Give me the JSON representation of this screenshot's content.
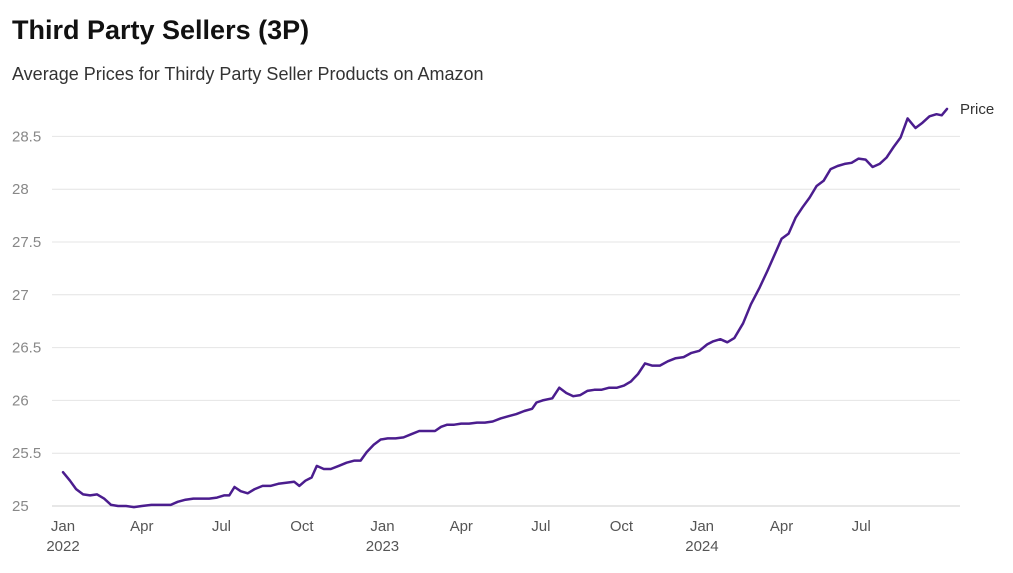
{
  "chart_data": {
    "type": "line",
    "title": "Third Party Sellers (3P)",
    "subtitle": "Average Prices for Thirdy Party Seller Products on Amazon",
    "xlabel": "",
    "ylabel": "",
    "ylim": [
      25,
      28.75
    ],
    "grid": true,
    "line_color": "#4b1d8e",
    "yticks": [
      25,
      25.5,
      26,
      26.5,
      27,
      27.5,
      28,
      28.5
    ],
    "ytick_labels": [
      "25",
      "25.5",
      "26",
      "26.5",
      "27",
      "27.5",
      "28",
      "28.5"
    ],
    "xticks": [
      {
        "date": "2022-01-01",
        "label": "Jan",
        "year": "2022"
      },
      {
        "date": "2022-04-01",
        "label": "Apr",
        "year": ""
      },
      {
        "date": "2022-07-01",
        "label": "Jul",
        "year": ""
      },
      {
        "date": "2022-10-01",
        "label": "Oct",
        "year": ""
      },
      {
        "date": "2023-01-01",
        "label": "Jan",
        "year": "2023"
      },
      {
        "date": "2023-04-01",
        "label": "Apr",
        "year": ""
      },
      {
        "date": "2023-07-01",
        "label": "Jul",
        "year": ""
      },
      {
        "date": "2023-10-01",
        "label": "Oct",
        "year": ""
      },
      {
        "date": "2024-01-01",
        "label": "Jan",
        "year": "2024"
      },
      {
        "date": "2024-04-01",
        "label": "Apr",
        "year": ""
      },
      {
        "date": "2024-07-01",
        "label": "Jul",
        "year": ""
      }
    ],
    "series": [
      {
        "name": "Price",
        "points": [
          [
            "2022-01-01",
            25.32
          ],
          [
            "2022-01-09",
            25.24
          ],
          [
            "2022-01-16",
            25.16
          ],
          [
            "2022-01-24",
            25.11
          ],
          [
            "2022-02-01",
            25.1
          ],
          [
            "2022-02-09",
            25.11
          ],
          [
            "2022-02-17",
            25.07
          ],
          [
            "2022-02-25",
            25.01
          ],
          [
            "2022-03-05",
            25.0
          ],
          [
            "2022-03-14",
            25.0
          ],
          [
            "2022-03-23",
            24.99
          ],
          [
            "2022-04-01",
            25.0
          ],
          [
            "2022-04-12",
            25.01
          ],
          [
            "2022-04-23",
            25.01
          ],
          [
            "2022-05-04",
            25.01
          ],
          [
            "2022-05-12",
            25.04
          ],
          [
            "2022-05-21",
            25.06
          ],
          [
            "2022-05-30",
            25.07
          ],
          [
            "2022-06-08",
            25.07
          ],
          [
            "2022-06-17",
            25.07
          ],
          [
            "2022-06-26",
            25.08
          ],
          [
            "2022-07-04",
            25.1
          ],
          [
            "2022-07-10",
            25.1
          ],
          [
            "2022-07-16",
            25.18
          ],
          [
            "2022-07-23",
            25.14
          ],
          [
            "2022-07-31",
            25.12
          ],
          [
            "2022-08-08",
            25.16
          ],
          [
            "2022-08-17",
            25.19
          ],
          [
            "2022-08-26",
            25.19
          ],
          [
            "2022-09-04",
            25.21
          ],
          [
            "2022-09-13",
            25.22
          ],
          [
            "2022-09-22",
            25.23
          ],
          [
            "2022-09-28",
            25.19
          ],
          [
            "2022-10-05",
            25.24
          ],
          [
            "2022-10-12",
            25.27
          ],
          [
            "2022-10-18",
            25.38
          ],
          [
            "2022-10-26",
            25.35
          ],
          [
            "2022-11-03",
            25.35
          ],
          [
            "2022-11-12",
            25.38
          ],
          [
            "2022-11-21",
            25.41
          ],
          [
            "2022-11-30",
            25.43
          ],
          [
            "2022-12-07",
            25.43
          ],
          [
            "2022-12-14",
            25.51
          ],
          [
            "2022-12-22",
            25.58
          ],
          [
            "2022-12-30",
            25.63
          ],
          [
            "2023-01-07",
            25.64
          ],
          [
            "2023-01-16",
            25.64
          ],
          [
            "2023-01-25",
            25.65
          ],
          [
            "2023-02-03",
            25.68
          ],
          [
            "2023-02-12",
            25.71
          ],
          [
            "2023-02-21",
            25.71
          ],
          [
            "2023-03-02",
            25.71
          ],
          [
            "2023-03-09",
            25.75
          ],
          [
            "2023-03-16",
            25.77
          ],
          [
            "2023-03-24",
            25.77
          ],
          [
            "2023-04-01",
            25.78
          ],
          [
            "2023-04-10",
            25.78
          ],
          [
            "2023-04-19",
            25.79
          ],
          [
            "2023-04-28",
            25.79
          ],
          [
            "2023-05-07",
            25.8
          ],
          [
            "2023-05-16",
            25.83
          ],
          [
            "2023-05-25",
            25.85
          ],
          [
            "2023-06-03",
            25.87
          ],
          [
            "2023-06-12",
            25.9
          ],
          [
            "2023-06-21",
            25.92
          ],
          [
            "2023-06-26",
            25.98
          ],
          [
            "2023-07-03",
            26.0
          ],
          [
            "2023-07-14",
            26.02
          ],
          [
            "2023-07-22",
            26.12
          ],
          [
            "2023-07-30",
            26.07
          ],
          [
            "2023-08-07",
            26.04
          ],
          [
            "2023-08-15",
            26.05
          ],
          [
            "2023-08-23",
            26.09
          ],
          [
            "2023-08-31",
            26.1
          ],
          [
            "2023-09-08",
            26.1
          ],
          [
            "2023-09-17",
            26.12
          ],
          [
            "2023-09-26",
            26.12
          ],
          [
            "2023-10-04",
            26.14
          ],
          [
            "2023-10-12",
            26.18
          ],
          [
            "2023-10-20",
            26.25
          ],
          [
            "2023-10-28",
            26.35
          ],
          [
            "2023-11-05",
            26.33
          ],
          [
            "2023-11-14",
            26.33
          ],
          [
            "2023-11-23",
            26.37
          ],
          [
            "2023-12-02",
            26.4
          ],
          [
            "2023-12-11",
            26.41
          ],
          [
            "2023-12-20",
            26.45
          ],
          [
            "2023-12-29",
            26.47
          ],
          [
            "2024-01-07",
            26.53
          ],
          [
            "2024-01-14",
            26.56
          ],
          [
            "2024-01-22",
            26.58
          ],
          [
            "2024-01-30",
            26.55
          ],
          [
            "2024-02-07",
            26.59
          ],
          [
            "2024-02-17",
            26.73
          ],
          [
            "2024-02-26",
            26.91
          ],
          [
            "2024-03-07",
            27.07
          ],
          [
            "2024-03-16",
            27.23
          ],
          [
            "2024-03-25",
            27.4
          ],
          [
            "2024-04-01",
            27.53
          ],
          [
            "2024-04-09",
            27.58
          ],
          [
            "2024-04-17",
            27.73
          ],
          [
            "2024-04-25",
            27.83
          ],
          [
            "2024-05-03",
            27.92
          ],
          [
            "2024-05-11",
            28.03
          ],
          [
            "2024-05-19",
            28.08
          ],
          [
            "2024-05-27",
            28.19
          ],
          [
            "2024-06-04",
            28.22
          ],
          [
            "2024-06-12",
            28.24
          ],
          [
            "2024-06-20",
            28.25
          ],
          [
            "2024-06-28",
            28.29
          ],
          [
            "2024-07-06",
            28.28
          ],
          [
            "2024-07-14",
            28.21
          ],
          [
            "2024-07-22",
            28.24
          ],
          [
            "2024-07-30",
            28.3
          ],
          [
            "2024-08-07",
            28.4
          ],
          [
            "2024-08-15",
            28.49
          ],
          [
            "2024-08-23",
            28.67
          ],
          [
            "2024-09-01",
            28.58
          ],
          [
            "2024-09-09",
            28.63
          ],
          [
            "2024-09-17",
            28.69
          ],
          [
            "2024-09-25",
            28.71
          ],
          [
            "2024-10-01",
            28.7
          ],
          [
            "2024-10-07",
            28.76
          ]
        ]
      }
    ]
  }
}
